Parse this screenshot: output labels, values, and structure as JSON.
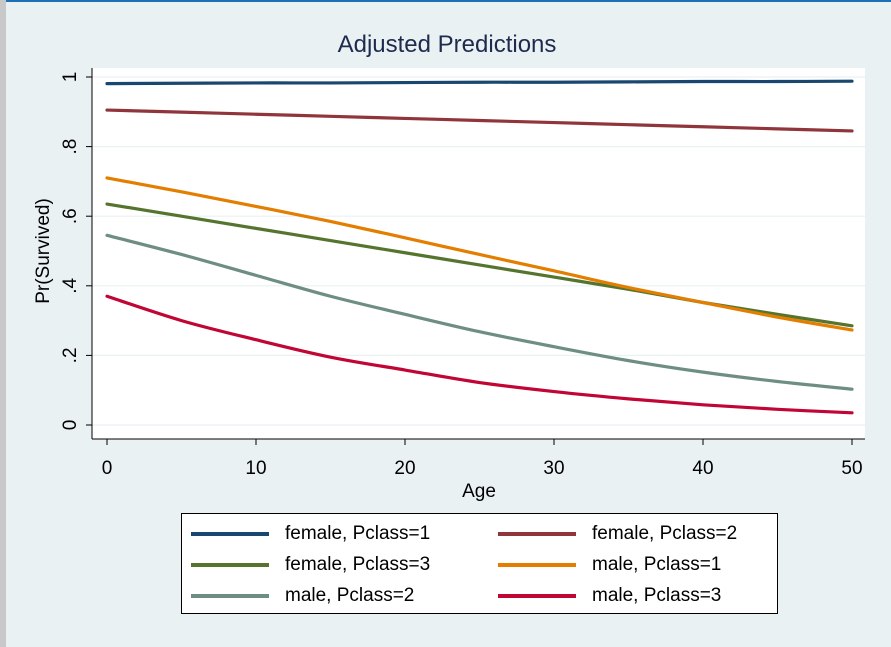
{
  "chart_data": {
    "type": "line",
    "title": "Adjusted Predictions",
    "xlabel": "Age",
    "ylabel": "Pr(Survived)",
    "xlim": [
      0,
      50
    ],
    "ylim": [
      0,
      1
    ],
    "xticks": [
      0,
      10,
      20,
      30,
      40,
      50
    ],
    "xtick_labels": [
      "0",
      "10",
      "20",
      "30",
      "40",
      "50"
    ],
    "yticks": [
      0,
      0.2,
      0.4,
      0.6,
      0.8,
      1
    ],
    "ytick_labels": [
      "0",
      ".2",
      ".4",
      ".6",
      ".8",
      "1"
    ],
    "grid": "horizontal",
    "legend_position": "bottom",
    "x": [
      0,
      5,
      10,
      15,
      20,
      25,
      30,
      35,
      40,
      45,
      50
    ],
    "series": [
      {
        "name": "female, Pclass=1",
        "color": "#1a476f",
        "values": [
          0.981,
          0.982,
          0.983,
          0.983,
          0.984,
          0.985,
          0.985,
          0.986,
          0.987,
          0.987,
          0.988
        ]
      },
      {
        "name": "female, Pclass=2",
        "color": "#90353b",
        "values": [
          0.905,
          0.899,
          0.893,
          0.887,
          0.881,
          0.875,
          0.869,
          0.863,
          0.857,
          0.851,
          0.845
        ]
      },
      {
        "name": "female, Pclass=3",
        "color": "#55752f",
        "values": [
          0.635,
          0.6,
          0.565,
          0.53,
          0.495,
          0.46,
          0.425,
          0.39,
          0.352,
          0.318,
          0.285
        ]
      },
      {
        "name": "male, Pclass=1",
        "color": "#e37e00",
        "values": [
          0.71,
          0.67,
          0.628,
          0.585,
          0.538,
          0.49,
          0.443,
          0.395,
          0.352,
          0.31,
          0.273
        ]
      },
      {
        "name": "male, Pclass=2",
        "color": "#6e8e84",
        "values": [
          0.545,
          0.49,
          0.43,
          0.37,
          0.318,
          0.268,
          0.225,
          0.185,
          0.152,
          0.125,
          0.103
        ]
      },
      {
        "name": "male, Pclass=3",
        "color": "#c10534",
        "values": [
          0.37,
          0.3,
          0.245,
          0.195,
          0.158,
          0.122,
          0.096,
          0.075,
          0.058,
          0.045,
          0.035
        ]
      }
    ]
  }
}
